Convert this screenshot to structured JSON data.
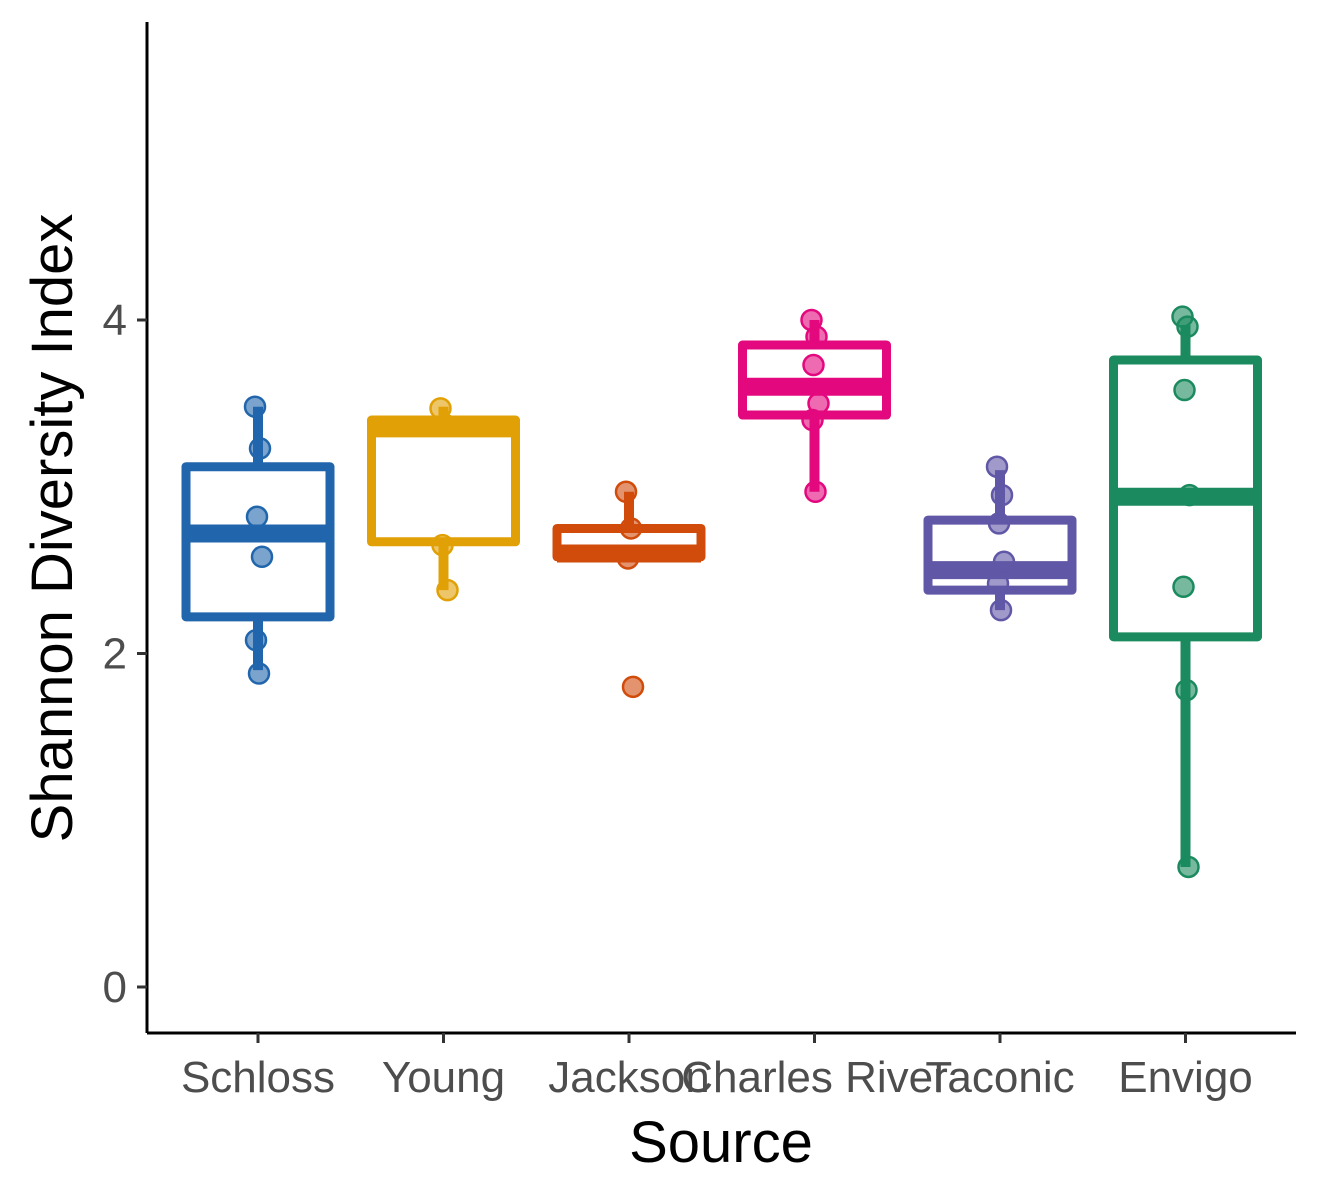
{
  "chart_data": {
    "type": "box",
    "xlabel": "Source",
    "ylabel": "Shannon Diversity Index",
    "ylim": [
      -0.28,
      5.8
    ],
    "yticks": [
      0,
      2,
      4
    ],
    "grid": false,
    "legend": "none",
    "categories": [
      "Schloss",
      "Young",
      "Jackson",
      "Charles River",
      "Taconic",
      "Envigo"
    ],
    "colors": [
      "#2166AC",
      "#E1A005",
      "#D14B0B",
      "#E3087E",
      "#6057A6",
      "#1B8A5F"
    ],
    "boxes": [
      {
        "name": "Schloss",
        "whisker_low": 1.9,
        "q1": 2.22,
        "median": 2.72,
        "q3": 3.12,
        "whisker_high": 3.48
      },
      {
        "name": "Young",
        "whisker_low": 2.38,
        "q1": 2.67,
        "median": 3.35,
        "q3": 3.4,
        "whisker_high": 3.48
      },
      {
        "name": "Jackson",
        "whisker_low": 2.58,
        "q1": 2.58,
        "median": 2.6,
        "q3": 2.75,
        "whisker_high": 2.97
      },
      {
        "name": "Charles River",
        "whisker_low": 2.97,
        "q1": 3.43,
        "median": 3.6,
        "q3": 3.85,
        "whisker_high": 4.0
      },
      {
        "name": "Taconic",
        "whisker_low": 2.26,
        "q1": 2.38,
        "median": 2.5,
        "q3": 2.8,
        "whisker_high": 3.1
      },
      {
        "name": "Envigo",
        "whisker_low": 0.72,
        "q1": 2.1,
        "median": 2.94,
        "q3": 3.76,
        "whisker_high": 3.97
      }
    ],
    "points": [
      [
        3.48,
        3.23,
        2.82,
        2.58,
        2.08,
        1.88
      ],
      [
        3.47,
        3.37,
        2.65,
        2.38
      ],
      [
        2.97,
        2.75,
        2.57,
        1.8
      ],
      [
        4.0,
        3.9,
        3.73,
        3.5,
        3.4,
        2.97
      ],
      [
        3.12,
        2.95,
        2.78,
        2.55,
        2.42,
        2.26
      ],
      [
        4.02,
        3.96,
        3.58,
        2.95,
        2.4,
        1.78,
        0.72
      ]
    ]
  }
}
